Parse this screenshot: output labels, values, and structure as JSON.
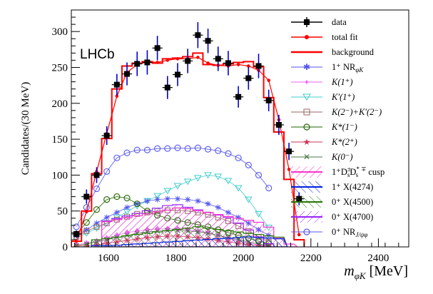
{
  "chart_data": {
    "type": "histogram-fit",
    "experiment_label": "LHCb",
    "xlabel_main": "m",
    "xlabel_sub": "φK",
    "xlabel_unit": "[MeV]",
    "ylabel": "Candidates/(30 MeV)",
    "xlim": [
      1490,
      2490
    ],
    "ylim": [
      0,
      330
    ],
    "xticks": [
      1600,
      1800,
      2000,
      2200,
      2400
    ],
    "yticks": [
      0,
      50,
      100,
      150,
      200,
      250,
      300
    ],
    "bin_width": 30,
    "data": {
      "x": [
        1505,
        1535,
        1565,
        1595,
        1625,
        1655,
        1685,
        1715,
        1745,
        1775,
        1805,
        1835,
        1865,
        1895,
        1925,
        1955,
        1985,
        2015,
        2045,
        2075,
        2105,
        2135,
        2165
      ],
      "y": [
        18,
        70,
        100,
        155,
        226,
        241,
        255,
        257,
        277,
        222,
        240,
        259,
        295,
        287,
        262,
        256,
        209,
        235,
        252,
        204,
        170,
        133,
        67
      ],
      "err": [
        5,
        10,
        11,
        13,
        15,
        16,
        17,
        17,
        17,
        16,
        16,
        17,
        18,
        17,
        17,
        17,
        15,
        16,
        17,
        15,
        14,
        12,
        9
      ]
    },
    "total_fit": [
      8,
      49,
      105,
      158,
      210,
      243,
      254,
      258,
      257,
      260,
      262,
      262,
      264,
      256,
      253,
      252,
      254,
      252,
      246,
      232,
      177,
      108,
      17
    ],
    "background": [
      8,
      50,
      102,
      151,
      220,
      252,
      256,
      258,
      256,
      262,
      263,
      265,
      270,
      254,
      253,
      255,
      257,
      258,
      251,
      208,
      160,
      94,
      10
    ],
    "components": {
      "nr_1plus_phiK": [
        16,
        24,
        33,
        41,
        48,
        55,
        60,
        64,
        66,
        67,
        67,
        66,
        64,
        60,
        55,
        48,
        41,
        33,
        24,
        16
      ],
      "K_1plus": [
        3,
        5,
        8,
        12,
        16,
        20,
        22,
        24,
        25,
        25,
        25,
        24,
        22,
        20,
        16,
        12,
        8,
        5,
        3,
        2
      ],
      "Kprime_1plus": [
        12,
        19,
        26,
        33,
        41,
        49,
        57,
        64,
        71,
        78,
        85,
        91,
        96,
        100,
        98,
        92,
        82,
        66,
        46,
        27
      ],
      "K2m_Kprime2m": [
        14,
        22,
        28,
        33,
        38,
        42,
        46,
        48,
        50,
        51,
        51,
        50,
        48,
        45,
        41,
        36,
        29,
        22,
        14,
        7
      ],
      "Kstar_1minus": [
        18,
        34,
        52,
        66,
        70,
        68,
        60,
        50,
        44,
        40,
        37,
        34,
        31,
        28,
        24,
        20,
        16,
        12,
        8,
        5
      ],
      "Kstar_2plus": [
        1,
        2,
        3,
        5,
        7,
        9,
        11,
        13,
        14,
        15,
        15,
        14,
        13,
        11,
        9,
        7,
        5,
        3,
        2,
        1
      ],
      "K_0minus": [
        2,
        4,
        7,
        10,
        13,
        16,
        19,
        21,
        22,
        23,
        23,
        22,
        21,
        19,
        16,
        13,
        10,
        7,
        4,
        2
      ],
      "nr_0plus_JpsiPhi": [
        28,
        55,
        81,
        105,
        124,
        131,
        135,
        135,
        137,
        137,
        138,
        137,
        138,
        136,
        134,
        130,
        124,
        114,
        100,
        82
      ]
    },
    "legend": {
      "data": "data",
      "total_fit": "total fit",
      "background": "background",
      "nr_1plus_phiK": "1⁺ NR",
      "nr_1plus_phiK_sub": "φK",
      "K_1plus": "K(1⁺)",
      "Kprime_1plus": "K′(1⁺)",
      "K2m_Kprime2m": "K(2⁻)+K′(2⁻)",
      "Kstar_1minus": "K*(1⁻)",
      "Kstar_2plus": "K*(2⁺)",
      "K_0minus": "K(0⁻)",
      "cusp": "1⁺D",
      "cusp_sub1": "s",
      "cusp_sup1": "±",
      "cusp_mid": "D",
      "cusp_sub2": "s",
      "cusp_sup2": "* ∓",
      "cusp_tail": " cusp",
      "X4274": "1⁺ X(4274)",
      "X4500": "0⁺ X(4500)",
      "X4700": "0⁺ X(4700)",
      "nr_0plus": "0⁺ NR",
      "nr_0plus_sub": "J/ψφ"
    },
    "colors": {
      "data": "#000000",
      "total_fit": "#ff0000",
      "background": "#ff0000",
      "errorbar": "#0000cc",
      "nr_1plus_phiK": "#5555ee",
      "K_1plus": "#ee66ee",
      "Kprime_1plus": "#44cccc",
      "K2m_Kprime2m": "#996666",
      "Kstar_1minus": "#226600",
      "Kstar_2plus": "#cc3355",
      "K_0minus": "#447744",
      "cusp": "#ff33cc",
      "X4274": "#0022dd",
      "X4500": "#227700",
      "X4700": "#9922ff",
      "nr_0plus": "#5555ee"
    }
  }
}
